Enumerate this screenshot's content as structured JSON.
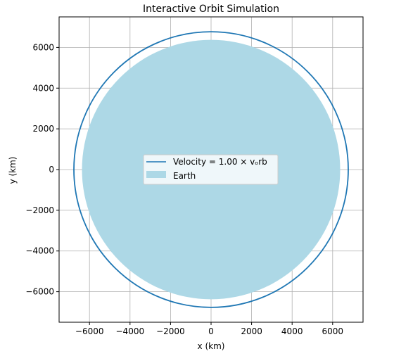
{
  "chart_data": {
    "type": "line",
    "title": "Interactive Orbit Simulation",
    "xlabel": "x (km)",
    "ylabel": "y (km)",
    "xlim": [
      -7500,
      7500
    ],
    "ylim": [
      -7500,
      7500
    ],
    "xticks": [
      -6000,
      -4000,
      -2000,
      0,
      2000,
      4000,
      6000
    ],
    "yticks": [
      -6000,
      -4000,
      -2000,
      0,
      2000,
      4000,
      6000
    ],
    "tick_labels": [
      "−6000",
      "−4000",
      "−2000",
      "0",
      "2000",
      "4000",
      "6000"
    ],
    "grid": true,
    "legend_placement": "center",
    "series": [
      {
        "name": "Velocity = 1.00 × vₒrb",
        "type": "line",
        "shape": "circle",
        "center": [
          0,
          0
        ],
        "radius": 6770,
        "color": "#1f77b4"
      },
      {
        "name": "Earth",
        "type": "filled-circle",
        "center": [
          0,
          0
        ],
        "radius": 6371,
        "color": "#add8e6"
      }
    ]
  }
}
